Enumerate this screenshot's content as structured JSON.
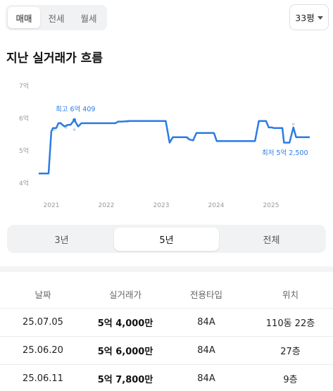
{
  "deal_tabs": [
    "매매",
    "전세",
    "월세"
  ],
  "size_select": "33평",
  "title": "지난 실거래가 흐름",
  "range_tabs": [
    "3년",
    "5년",
    "전체"
  ],
  "colors": {
    "accent": "#2b7be4",
    "dot": "#c9d8ee"
  },
  "chart_data": {
    "type": "line",
    "y_ticks": [
      "7억",
      "6억",
      "5억",
      "4억"
    ],
    "x_ticks": [
      "2021",
      "2022",
      "2023",
      "2024",
      "2025"
    ],
    "ylim": [
      4,
      7
    ],
    "xlim": [
      2020.8,
      2025.75
    ],
    "grid": false,
    "annotations": {
      "max": "최고 6억 409",
      "min": "최저 5억 2,500"
    },
    "series": [
      {
        "x": [
          2020.8,
          2020.98,
          2021.03,
          2021.06,
          2021.12,
          2021.16,
          2021.2,
          2021.27,
          2021.33,
          2021.38,
          2021.45,
          2021.52,
          2021.58,
          2021.7,
          2021.8,
          2022.0,
          2022.2,
          2022.25,
          2022.32,
          2022.45,
          2022.6,
          2022.8,
          2023.0,
          2023.12,
          2023.19,
          2023.25,
          2023.35,
          2023.5,
          2023.55,
          2023.62,
          2023.68,
          2023.72,
          2023.78,
          2023.95,
          2024.0,
          2024.05,
          2024.2,
          2024.5,
          2024.75,
          2024.82,
          2024.95,
          2025.0,
          2025.05,
          2025.1,
          2025.22,
          2025.25,
          2025.28,
          2025.38,
          2025.45,
          2025.5,
          2025.57,
          2025.75
        ],
        "y": [
          4.3,
          4.3,
          5.6,
          5.7,
          5.7,
          5.85,
          5.85,
          5.75,
          5.8,
          5.8,
          5.95,
          5.75,
          5.85,
          5.85,
          5.85,
          5.85,
          5.85,
          5.9,
          5.9,
          5.92,
          5.92,
          5.92,
          5.92,
          5.92,
          5.25,
          5.42,
          5.42,
          5.42,
          5.35,
          5.32,
          5.55,
          5.55,
          5.55,
          5.55,
          5.55,
          5.3,
          5.3,
          5.3,
          5.3,
          5.92,
          5.92,
          5.72,
          5.72,
          5.7,
          5.7,
          5.7,
          5.25,
          5.25,
          5.72,
          5.42,
          5.42,
          5.42
        ]
      }
    ],
    "points": {
      "x": [
        2021.08,
        2021.2,
        2021.3,
        2021.45,
        2021.3,
        2022.42,
        2023.52,
        2025.45
      ],
      "y": [
        5.65,
        5.85,
        5.72,
        5.65,
        5.76,
        5.9,
        5.4,
        5.82
      ]
    }
  },
  "table": {
    "headers": [
      "날짜",
      "실거래가",
      "전용타입",
      "위치"
    ],
    "rows": [
      [
        "25.07.05",
        "5억 4,000만",
        "84A",
        "110동 22층"
      ],
      [
        "25.06.20",
        "5억 6,000만",
        "84A",
        "27층"
      ],
      [
        "25.06.11",
        "5억 7,800만",
        "84A",
        "9층"
      ]
    ]
  }
}
